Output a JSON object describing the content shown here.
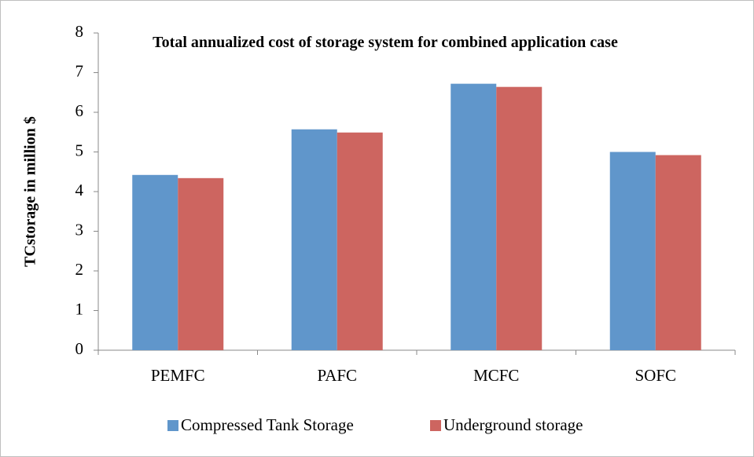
{
  "chart_data": {
    "type": "bar",
    "title": "Total annualized cost of storage system for combined application case",
    "ylabel": "TCstorage in million $",
    "categories": [
      "PEMFC",
      "PAFC",
      "MCFC",
      "SOFC"
    ],
    "series": [
      {
        "name": "Compressed Tank Storage",
        "color": "#6096cb",
        "values": [
          4.42,
          5.57,
          6.72,
          5.0
        ]
      },
      {
        "name": "Underground storage",
        "color": "#cd6560",
        "values": [
          4.34,
          5.49,
          6.64,
          4.92
        ]
      }
    ],
    "ylim": [
      0,
      8
    ],
    "yticks": [
      0,
      1,
      2,
      3,
      4,
      5,
      6,
      7,
      8
    ],
    "grid": false,
    "legend": "bottom"
  }
}
